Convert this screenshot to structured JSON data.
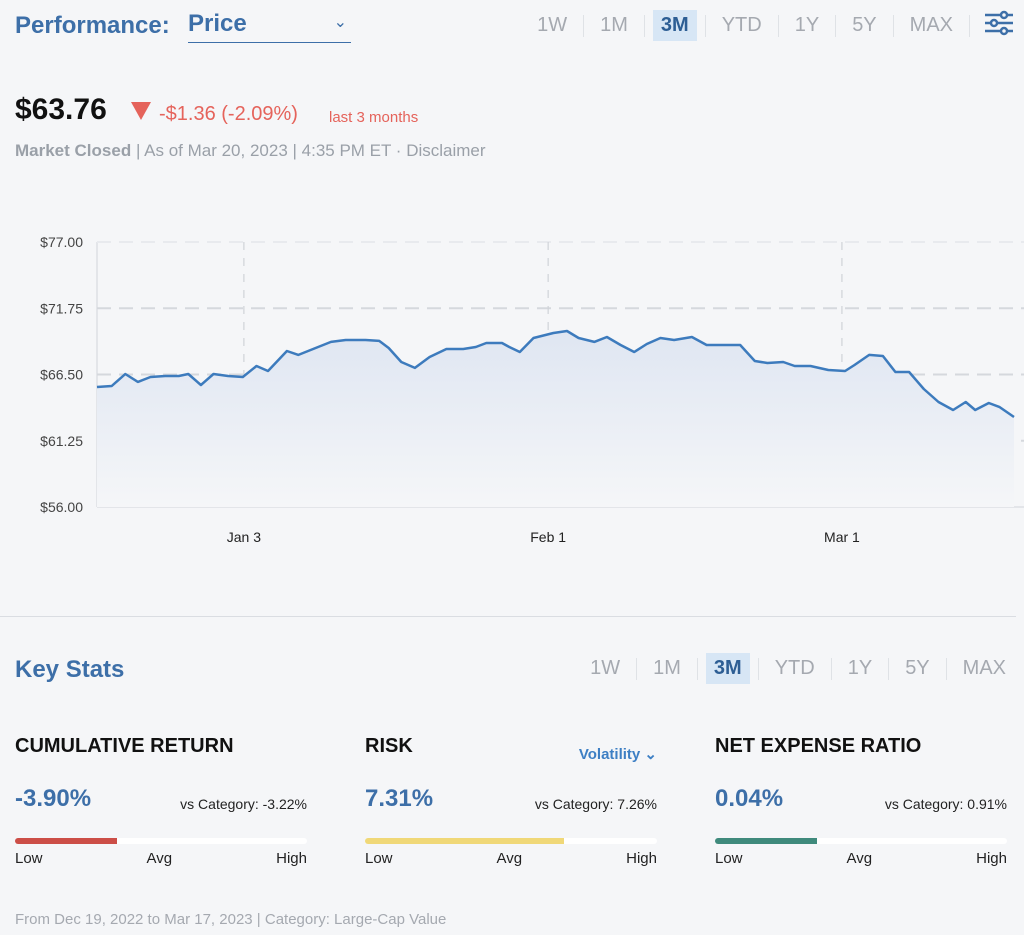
{
  "header": {
    "title": "Performance:",
    "select_value": "Price",
    "chevron": "⌄",
    "ranges": [
      "1W",
      "1M",
      "3M",
      "YTD",
      "1Y",
      "5Y",
      "MAX"
    ],
    "active_range": "3M",
    "settings_icon": "sliders-icon"
  },
  "quote": {
    "price": "$63.76",
    "change": "-$1.36 (-2.09%)",
    "period": "last 3 months",
    "market_status": "Market Closed",
    "as_of": "| As of Mar 20, 2023 | 4:35 PM ET · ",
    "disclaimer": "Disclaimer",
    "down_color": "#e5635b"
  },
  "chart_data": {
    "type": "area",
    "title": "",
    "xlabel": "",
    "ylabel": "",
    "ylim": [
      56,
      77
    ],
    "y_ticks": [
      77,
      71.75,
      66.5,
      61.25,
      56
    ],
    "y_tick_labels": [
      "$77.00",
      "$71.75",
      "$66.50",
      "$61.25",
      "$56.00"
    ],
    "x_unit": "days since Dec 20, 2022",
    "xlim": [
      0,
      87.4
    ],
    "x_ticks": [
      14,
      43,
      71
    ],
    "x_tick_labels": [
      "Jan 3",
      "Feb 1",
      "Mar 1"
    ],
    "grid": true,
    "line_color": "#3d7bbd",
    "x": [
      0,
      1.4,
      2.7,
      3.9,
      5.1,
      6.5,
      7.8,
      8.7,
      9.9,
      11.1,
      12.5,
      13.9,
      15.2,
      16.3,
      18.1,
      19.2,
      20.6,
      22.3,
      23.7,
      25.6,
      26.9,
      27.8,
      29.0,
      30.3,
      31.7,
      33.3,
      34.9,
      36.1,
      37.1,
      38.6,
      39.3,
      40.3,
      41.6,
      43.5,
      44.8,
      45.9,
      47.4,
      48.6,
      49.9,
      51.2,
      52.4,
      53.7,
      55.0,
      56.7,
      58.1,
      59.6,
      61.3,
      62.7,
      63.9,
      65.4,
      66.5,
      68.0,
      69.7,
      71.3,
      72.2,
      73.6,
      74.9,
      76.1,
      77.4,
      78.8,
      80.2,
      81.6,
      82.8,
      83.7,
      85.0,
      86.0,
      87.4
    ],
    "values": [
      65.51,
      65.59,
      66.54,
      65.91,
      66.3,
      66.38,
      66.38,
      66.54,
      65.67,
      66.54,
      66.38,
      66.3,
      67.17,
      66.78,
      68.36,
      68.05,
      68.52,
      69.08,
      69.23,
      69.23,
      69.16,
      68.6,
      67.49,
      67.02,
      67.89,
      68.52,
      68.52,
      68.68,
      69.0,
      69.0,
      68.68,
      68.28,
      69.39,
      69.79,
      69.95,
      69.39,
      69.08,
      69.47,
      68.84,
      68.28,
      68.92,
      69.39,
      69.23,
      69.47,
      68.84,
      68.84,
      68.84,
      67.57,
      67.41,
      67.49,
      67.17,
      67.17,
      66.86,
      66.78,
      67.25,
      68.05,
      67.97,
      66.7,
      66.7,
      65.35,
      64.32,
      63.69,
      64.32,
      63.69,
      64.24,
      63.93,
      63.13
    ]
  },
  "key_stats": {
    "title": "Key Stats",
    "ranges": [
      "1W",
      "1M",
      "3M",
      "YTD",
      "1Y",
      "5Y",
      "MAX"
    ],
    "active_range": "3M",
    "stats": [
      {
        "heading": "CUMULATIVE RETURN",
        "value": "-3.90%",
        "vs": "vs Category: -3.22%",
        "fill_pct": 35,
        "color": "#cc4e47",
        "low": "Low",
        "avg": "Avg",
        "high": "High"
      },
      {
        "heading": "RISK",
        "value": "7.31%",
        "vs": "vs Category: 7.26%",
        "fill_pct": 68,
        "color": "#f0d878",
        "low": "Low",
        "avg": "Avg",
        "high": "High",
        "dropdown": "Volatility ⌄"
      },
      {
        "heading": "NET EXPENSE RATIO",
        "value": "0.04%",
        "vs": "vs Category: 0.91%",
        "fill_pct": 35,
        "color": "#3f8a7c",
        "low": "Low",
        "avg": "Avg",
        "high": "High"
      }
    ]
  },
  "footer": "From Dec 19, 2022 to Mar 17, 2023 | Category: Large-Cap Value"
}
